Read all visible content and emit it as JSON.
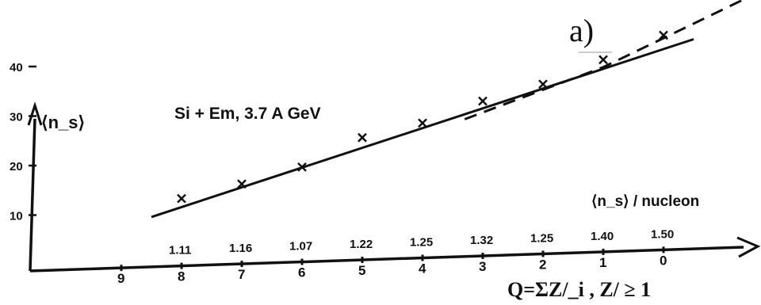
{
  "panel_label": "a)",
  "chart_data": {
    "type": "line",
    "title": "Si + Em, 3.7 A GeV",
    "ylabel": "⟨n_s⟩",
    "xlabel": "Q=ΣZ/_i ,  Z/ ≥ 1",
    "ratio_label": "⟨n_s⟩ / nucleon",
    "categories": [
      "9",
      "8",
      "7",
      "6",
      "5",
      "4",
      "3",
      "2",
      "1",
      "0"
    ],
    "ratio_values": [
      "",
      "1.11",
      "1.16",
      "1.07",
      "1.22",
      "1.25",
      "1.32",
      "1.25",
      "1.40",
      "1.50"
    ],
    "yticks": [
      10,
      20,
      30,
      40
    ],
    "ylim": [
      0,
      45
    ],
    "grid": false,
    "series": [
      {
        "style": "points",
        "x": [
          "8",
          "7",
          "6",
          "5",
          "4",
          "3",
          "2",
          "1",
          "0"
        ],
        "values": [
          13.5,
          16,
          19,
          24.5,
          27,
          31,
          34,
          38.5,
          43
        ]
      },
      {
        "style": "solid-fit",
        "x": [
          "8.5",
          "-0.5"
        ],
        "values": [
          10,
          42
        ]
      },
      {
        "style": "dashed",
        "x": [
          "3.3",
          "1",
          "-1.4"
        ],
        "values": [
          27.5,
          37,
          50
        ]
      }
    ]
  }
}
